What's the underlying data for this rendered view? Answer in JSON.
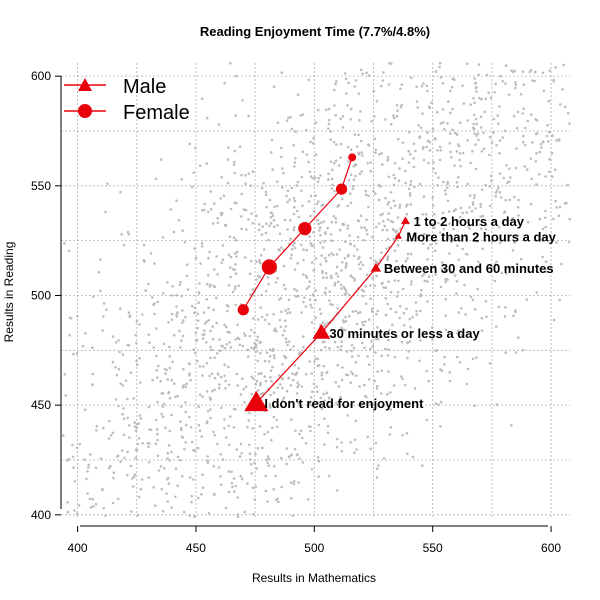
{
  "chart_data": {
    "type": "scatter",
    "title": "Reading Enjoyment Time (7.7%/4.8%)",
    "xlabel": "Results in Mathematics",
    "ylabel": "Results in Reading",
    "xlim": [
      393,
      608
    ],
    "ylim": [
      399,
      606
    ],
    "xticks": [
      400,
      450,
      500,
      550,
      600
    ],
    "yticks": [
      400,
      450,
      500,
      550,
      600
    ],
    "grid": true,
    "legend_position": "top-left",
    "background_points": {
      "description_color": "#bdbdbd",
      "count": 2600
    },
    "series": [
      {
        "name": "Male",
        "marker": "triangle",
        "color": "#e8000b",
        "points": [
          {
            "x": 475.5,
            "y": 451,
            "size": 3,
            "label": "I don't read for enjoyment"
          },
          {
            "x": 503,
            "y": 483,
            "size": 2.2,
            "label": "30 minutes or less a day"
          },
          {
            "x": 526,
            "y": 512.5,
            "size": 1.3,
            "label": "Between 30 and 60 minutes"
          },
          {
            "x": 535.5,
            "y": 527,
            "size": 0.9,
            "label": "More than 2 hours a day"
          },
          {
            "x": 538.5,
            "y": 534,
            "size": 1.1,
            "label": "1 to 2 hours a day"
          }
        ]
      },
      {
        "name": "Female",
        "marker": "circle",
        "color": "#e8000b",
        "points": [
          {
            "x": 470,
            "y": 493.5,
            "size": 1.7
          },
          {
            "x": 481,
            "y": 513,
            "size": 2.3
          },
          {
            "x": 496,
            "y": 530.5,
            "size": 2.0
          },
          {
            "x": 511.5,
            "y": 548.5,
            "size": 1.7
          },
          {
            "x": 516,
            "y": 563,
            "size": 1.2
          }
        ]
      }
    ]
  }
}
